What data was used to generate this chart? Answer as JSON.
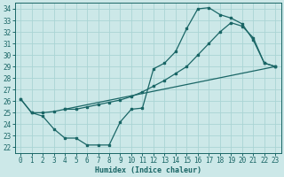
{
  "xlabel": "Humidex (Indice chaleur)",
  "bg_color": "#cce8e8",
  "grid_color": "#aad4d4",
  "line_color": "#1a6666",
  "xlim": [
    -0.5,
    23.5
  ],
  "ylim": [
    21.5,
    34.5
  ],
  "xticks": [
    0,
    1,
    2,
    3,
    4,
    5,
    6,
    7,
    8,
    9,
    10,
    11,
    12,
    13,
    14,
    15,
    16,
    17,
    18,
    19,
    20,
    21,
    22,
    23
  ],
  "yticks": [
    22,
    23,
    24,
    25,
    26,
    27,
    28,
    29,
    30,
    31,
    32,
    33,
    34
  ],
  "curve1_x": [
    0,
    1,
    2,
    3,
    4,
    5,
    6,
    7,
    8,
    9,
    10,
    11,
    12,
    13,
    14,
    15,
    16,
    17,
    18,
    19,
    20,
    21,
    22,
    23
  ],
  "curve1_y": [
    26.2,
    25.0,
    24.7,
    23.6,
    22.8,
    22.8,
    22.2,
    22.2,
    22.2,
    24.2,
    25.3,
    25.4,
    28.8,
    29.3,
    30.3,
    32.3,
    34.0,
    34.1,
    33.5,
    33.2,
    32.7,
    31.3,
    29.3,
    29.0
  ],
  "curve2_x": [
    0,
    1,
    2,
    3,
    4,
    23
  ],
  "curve2_y": [
    26.2,
    25.0,
    25.0,
    25.1,
    25.3,
    29.0
  ],
  "curve3_x": [
    4,
    5,
    6,
    7,
    8,
    9,
    10,
    11,
    12,
    13,
    14,
    15,
    16,
    17,
    18,
    19,
    20,
    21,
    22,
    23
  ],
  "curve3_y": [
    25.3,
    25.3,
    25.5,
    25.7,
    25.9,
    26.1,
    26.4,
    26.8,
    27.3,
    27.8,
    28.4,
    29.0,
    30.0,
    31.0,
    32.0,
    32.8,
    32.5,
    31.5,
    29.3,
    29.0
  ]
}
